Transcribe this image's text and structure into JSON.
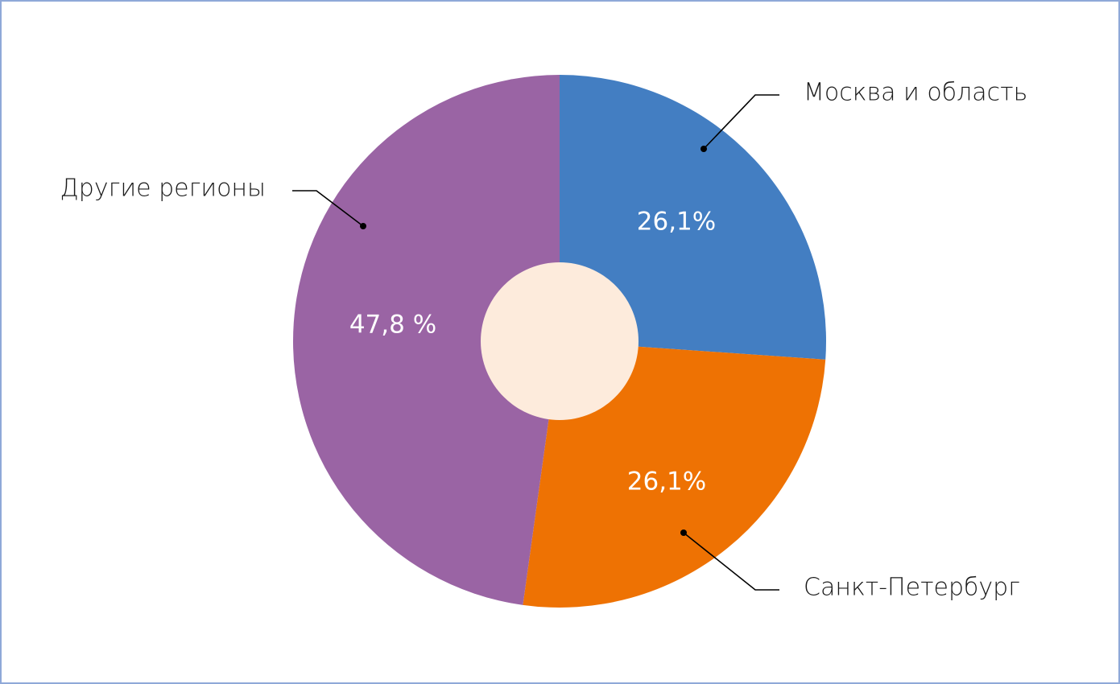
{
  "chart_data": {
    "type": "donut",
    "categories": [
      "Москва и область",
      "Санкт-Петербург",
      "Другие регионы"
    ],
    "values": [
      26.1,
      26.1,
      47.8
    ],
    "value_labels": [
      "26,1%",
      "26,1%",
      "47,8 %"
    ],
    "colors": [
      "#437ec2",
      "#ee7203",
      "#9a64a4"
    ]
  }
}
